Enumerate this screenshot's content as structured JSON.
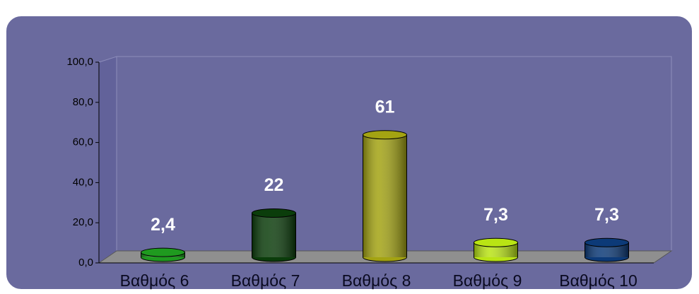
{
  "chart_data": {
    "type": "bar",
    "categories": [
      "Βαθμός 6",
      "Βαθμός 7",
      "Βαθμός 8",
      "Βαθμός 9",
      "Βαθμός 10"
    ],
    "values": [
      2.4,
      22,
      61,
      7.3,
      7.3
    ],
    "value_labels": [
      "2,4",
      "22",
      "61",
      "7,3",
      "7,3"
    ],
    "colors": [
      "#1f9a1f",
      "#0b3d0b",
      "#a3a312",
      "#b9e414",
      "#0c3a78"
    ],
    "ylim": [
      0,
      100
    ],
    "yticks": [
      {
        "value": 0,
        "label": "0,0"
      },
      {
        "value": 20,
        "label": "20,0"
      },
      {
        "value": 40,
        "label": "40,0"
      },
      {
        "value": 60,
        "label": "60,0"
      },
      {
        "value": 80,
        "label": "80,0"
      },
      {
        "value": 100,
        "label": "100,0"
      }
    ]
  }
}
